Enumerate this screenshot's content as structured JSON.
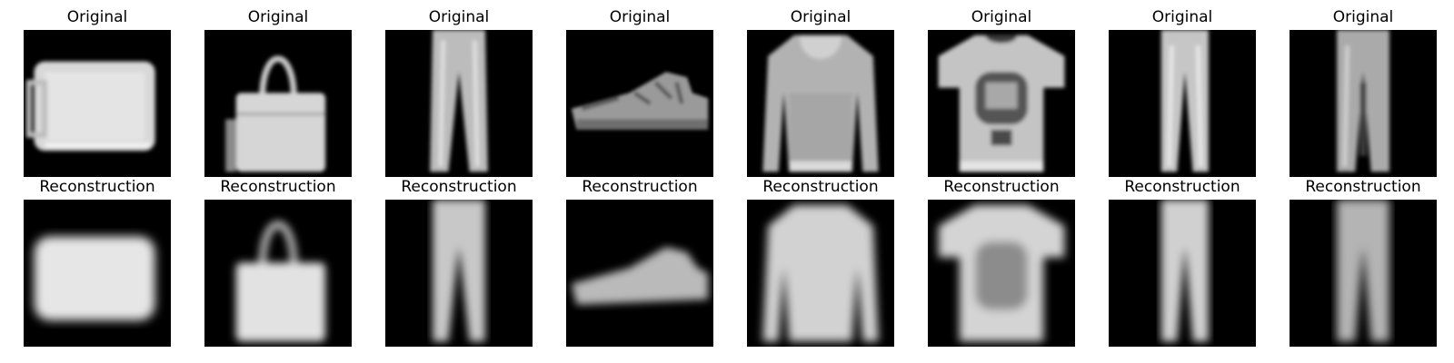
{
  "figure": {
    "background": "#ffffff",
    "image_background": "#000000",
    "rows": [
      {
        "row": "originals",
        "cells": [
          {
            "title": "Original",
            "item": "bag"
          },
          {
            "title": "Original",
            "item": "handbag"
          },
          {
            "title": "Original",
            "item": "trouser"
          },
          {
            "title": "Original",
            "item": "sneaker"
          },
          {
            "title": "Original",
            "item": "hoodie"
          },
          {
            "title": "Original",
            "item": "t-shirt"
          },
          {
            "title": "Original",
            "item": "trouser"
          },
          {
            "title": "Original",
            "item": "trouser"
          }
        ]
      },
      {
        "row": "reconstructions",
        "cells": [
          {
            "title": "Reconstruction",
            "item": "bag"
          },
          {
            "title": "Reconstruction",
            "item": "handbag"
          },
          {
            "title": "Reconstruction",
            "item": "trouser"
          },
          {
            "title": "Reconstruction",
            "item": "sneaker"
          },
          {
            "title": "Reconstruction",
            "item": "pullover"
          },
          {
            "title": "Reconstruction",
            "item": "t-shirt"
          },
          {
            "title": "Reconstruction",
            "item": "trouser"
          },
          {
            "title": "Reconstruction",
            "item": "trouser"
          }
        ]
      }
    ]
  }
}
